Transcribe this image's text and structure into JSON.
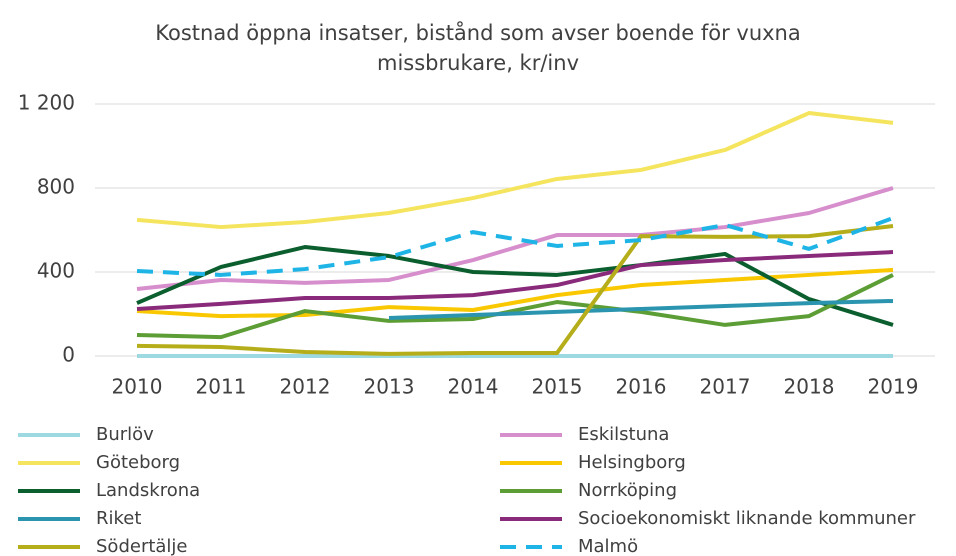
{
  "chart_data": {
    "type": "line",
    "title": "Kostnad öppna insatser, bistånd som avser boende för vuxna missbrukare, kr/inv",
    "categories": [
      "2010",
      "2011",
      "2012",
      "2013",
      "2014",
      "2015",
      "2016",
      "2017",
      "2018",
      "2019"
    ],
    "ylim": [
      0,
      1200
    ],
    "yticks": [
      0,
      400,
      800,
      {
        "value": 1200,
        "label": "1 200"
      }
    ],
    "grid": true,
    "legend": "bottom",
    "series": [
      {
        "name": "Burlöv",
        "color": "#9dd9e0",
        "values": [
          0,
          0,
          0,
          0,
          0,
          0,
          0,
          0,
          0,
          0
        ]
      },
      {
        "name": "Eskilstuna",
        "color": "#d68fcc",
        "values": [
          319,
          362,
          348,
          362,
          457,
          576,
          576,
          614,
          681,
          800
        ]
      },
      {
        "name": "Göteborg",
        "color": "#f5e45e",
        "values": [
          648,
          614,
          638,
          681,
          752,
          843,
          886,
          981,
          1157,
          1110
        ]
      },
      {
        "name": "Helsingborg",
        "color": "#f9c800",
        "values": [
          214,
          190,
          195,
          233,
          219,
          290,
          338,
          362,
          386,
          410
        ]
      },
      {
        "name": "Landskrona",
        "color": "#0b5e2d",
        "values": [
          252,
          424,
          519,
          476,
          400,
          386,
          433,
          486,
          271,
          148
        ]
      },
      {
        "name": "Norrköping",
        "color": "#5c9e35",
        "values": [
          100,
          90,
          214,
          167,
          176,
          257,
          210,
          148,
          190,
          386
        ]
      },
      {
        "name": "Riket",
        "color": "#2b95b0",
        "values": [
          null,
          null,
          null,
          181,
          195,
          210,
          224,
          238,
          252,
          262
        ]
      },
      {
        "name": "Socioekonomiskt liknande kommuner",
        "color": "#8a2a7a",
        "values": [
          224,
          248,
          276,
          276,
          290,
          338,
          433,
          457,
          476,
          495
        ]
      },
      {
        "name": "Södertälje",
        "color": "#b5ad1a",
        "values": [
          48,
          43,
          19,
          10,
          14,
          14,
          571,
          567,
          571,
          619
        ]
      },
      {
        "name": "Malmö",
        "color": "#1eb4e6",
        "dashed": true,
        "values": [
          405,
          386,
          414,
          471,
          590,
          524,
          552,
          624,
          510,
          657
        ]
      }
    ]
  }
}
